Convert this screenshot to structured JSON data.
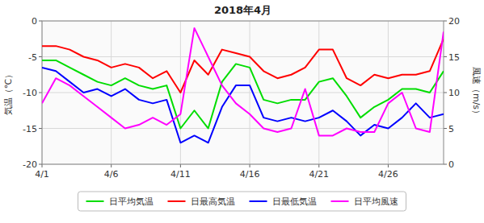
{
  "chart_data": {
    "type": "line",
    "title": "2018年4月",
    "x": [
      1,
      2,
      3,
      4,
      5,
      6,
      7,
      8,
      9,
      10,
      11,
      12,
      13,
      14,
      15,
      16,
      17,
      18,
      19,
      20,
      21,
      22,
      23,
      24,
      25,
      26,
      27,
      28,
      29,
      30
    ],
    "xlim": [
      1,
      30
    ],
    "xticks": [
      {
        "value": 1,
        "label": "4/1"
      },
      {
        "value": 6,
        "label": "4/6"
      },
      {
        "value": 11,
        "label": "4/11"
      },
      {
        "value": 16,
        "label": "4/16"
      },
      {
        "value": 21,
        "label": "4/21"
      },
      {
        "value": 26,
        "label": "4/26"
      }
    ],
    "ylim": [
      -20,
      0
    ],
    "yticks": [
      0,
      -5,
      -10,
      -15,
      -20
    ],
    "y2lim": [
      0,
      20
    ],
    "y2ticks": [
      0,
      5,
      10,
      15,
      20
    ],
    "ylabel": "気温（℃）",
    "y2label": "風速（m/s）",
    "grid": true,
    "legend": "bottom",
    "series": [
      {
        "name": "日平均気温",
        "color": "#00dd00",
        "values": [
          -5.5,
          -5.5,
          -6.5,
          -7.5,
          -8.5,
          -9.0,
          -8.0,
          -9.0,
          -9.5,
          -9.0,
          -15.0,
          -12.5,
          -15.0,
          -8.5,
          -6.0,
          -6.5,
          -11.0,
          -11.5,
          -11.0,
          -11.0,
          -8.5,
          -8.0,
          -10.5,
          -13.5,
          -12.0,
          -11.0,
          -9.5,
          -9.5,
          -10.0,
          -7.0
        ]
      },
      {
        "name": "日最高気温",
        "color": "#ff0000",
        "values": [
          -3.5,
          -3.5,
          -4.0,
          -5.0,
          -5.5,
          -6.5,
          -6.0,
          -6.5,
          -8.0,
          -7.0,
          -10.0,
          -5.5,
          -7.5,
          -4.0,
          -4.5,
          -5.0,
          -7.0,
          -8.0,
          -7.5,
          -6.5,
          -4.0,
          -4.0,
          -8.0,
          -9.0,
          -7.5,
          -8.0,
          -7.5,
          -7.5,
          -7.0,
          -2.5
        ]
      },
      {
        "name": "日最低気温",
        "color": "#0000ff",
        "values": [
          -6.5,
          -7.0,
          -8.5,
          -10.0,
          -9.5,
          -10.5,
          -9.5,
          -11.0,
          -11.5,
          -11.0,
          -17.0,
          -16.0,
          -17.0,
          -12.0,
          -9.0,
          -9.0,
          -13.5,
          -14.0,
          -13.5,
          -14.0,
          -13.5,
          -12.5,
          -14.0,
          -16.0,
          -14.5,
          -15.0,
          -13.5,
          -11.5,
          -13.5,
          -13.0
        ]
      },
      {
        "name": "日平均風速",
        "color": "#ff00ff",
        "axis": "y2",
        "values": [
          8.5,
          12.0,
          11.0,
          9.5,
          8.0,
          6.5,
          5.0,
          5.5,
          6.5,
          5.5,
          7.0,
          19.0,
          15.0,
          11.0,
          8.5,
          7.0,
          5.0,
          4.5,
          5.0,
          10.5,
          4.0,
          4.0,
          5.0,
          4.5,
          4.5,
          8.5,
          10.0,
          5.0,
          4.5,
          18.5
        ]
      }
    ]
  }
}
